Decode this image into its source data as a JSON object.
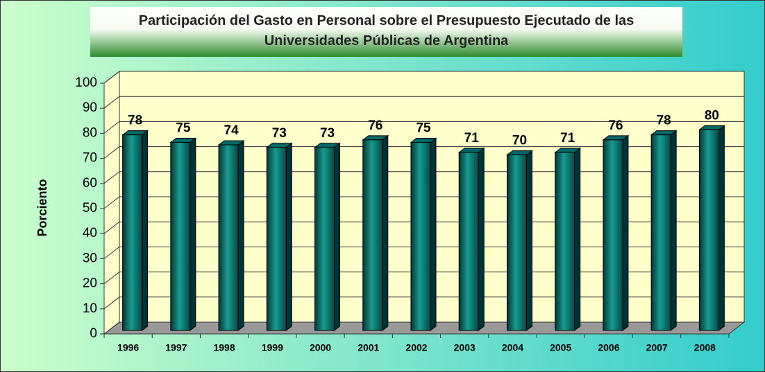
{
  "chart_data": {
    "type": "bar",
    "title": "Participación del Gasto en Personal sobre el Presupuesto Ejecutado de las Universidades Públicas  de Argentina",
    "y_label": "Porciento",
    "categories": [
      "1996",
      "1997",
      "1998",
      "1999",
      "2000",
      "2001",
      "2002",
      "2003",
      "2004",
      "2005",
      "2006",
      "2007",
      "2008"
    ],
    "values": [
      78,
      75,
      74,
      73,
      73,
      76,
      75,
      71,
      70,
      71,
      76,
      78,
      80
    ],
    "color": "#006666",
    "ylim": [
      0,
      100
    ],
    "yticks": [
      0,
      10,
      20,
      30,
      40,
      50,
      60,
      70,
      80,
      90,
      100
    ],
    "grid": true
  }
}
